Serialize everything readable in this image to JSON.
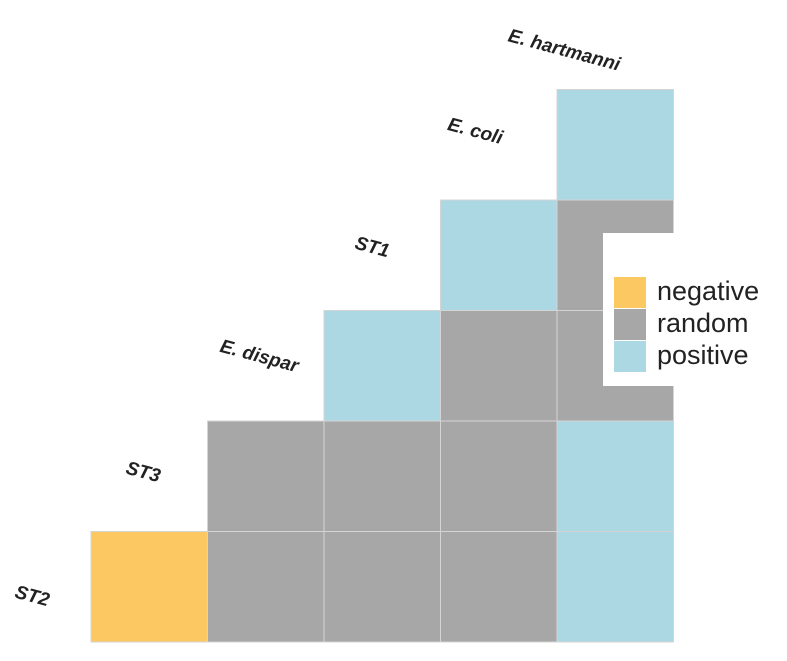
{
  "chart_data": {
    "type": "heatmap",
    "title": "",
    "xlabel": "",
    "ylabel": "",
    "grid": true,
    "legend_position": "right",
    "species": [
      "ST2",
      "ST3",
      "E. dispar",
      "ST1",
      "E. coli",
      "E. hartmanni"
    ],
    "categories": [
      "negative",
      "random",
      "positive"
    ],
    "colors": {
      "negative": "#fbc862",
      "random": "#a7a7a7",
      "positive": "#acd8e4"
    },
    "cells": [
      {
        "row": "ST2",
        "col": "ST3",
        "value": "negative"
      },
      {
        "row": "ST2",
        "col": "E. dispar",
        "value": "random"
      },
      {
        "row": "ST2",
        "col": "ST1",
        "value": "random"
      },
      {
        "row": "ST2",
        "col": "E. coli",
        "value": "random"
      },
      {
        "row": "ST2",
        "col": "E. hartmanni",
        "value": "positive"
      },
      {
        "row": "ST3",
        "col": "E. dispar",
        "value": "random"
      },
      {
        "row": "ST3",
        "col": "ST1",
        "value": "random"
      },
      {
        "row": "ST3",
        "col": "E. coli",
        "value": "random"
      },
      {
        "row": "ST3",
        "col": "E. hartmanni",
        "value": "positive"
      },
      {
        "row": "E. dispar",
        "col": "ST1",
        "value": "positive"
      },
      {
        "row": "E. dispar",
        "col": "E. coli",
        "value": "random"
      },
      {
        "row": "E. dispar",
        "col": "E. hartmanni",
        "value": "random"
      },
      {
        "row": "ST1",
        "col": "E. coli",
        "value": "positive"
      },
      {
        "row": "ST1",
        "col": "E. hartmanni",
        "value": "random"
      },
      {
        "row": "E. coli",
        "col": "E. hartmanni",
        "value": "positive"
      }
    ]
  }
}
